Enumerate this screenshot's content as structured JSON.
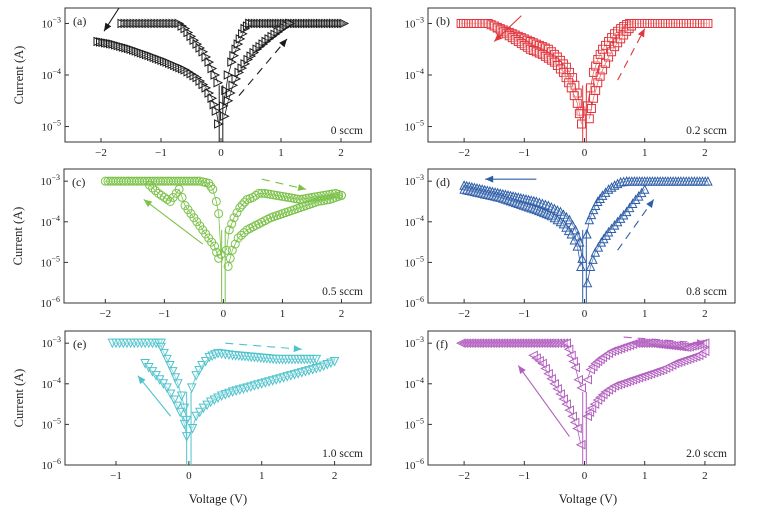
{
  "figure": {
    "ylabel": "Current (A)",
    "xlabel": "Voltage (V)"
  },
  "chart_data": [
    {
      "type": "scatter",
      "panel": "(a)",
      "annotation": "0 sccm",
      "color": "#1a1a1a",
      "marker": "triangle-right",
      "xlabel": "",
      "ylabel": "Current (A)",
      "yscale": "log",
      "xlim": [
        -2.6,
        2.5
      ],
      "ylim_exp": [
        -5.3,
        -2.7
      ],
      "xticks": [
        "-2",
        "-1",
        "0",
        "1",
        "2"
      ],
      "xtick_values": [
        -2,
        -1,
        0,
        1,
        2
      ],
      "yticks": [
        "10^-3",
        "10^-4",
        "10^-5"
      ],
      "ytick_exps": [
        -3,
        -4,
        -5
      ],
      "series": [
        {
          "name": "negative-set-compliance",
          "x": [
            -1.65,
            -1.5,
            -1.3,
            -1.1,
            -0.9,
            -0.7,
            -0.6,
            -0.5,
            -0.4,
            -0.3,
            -0.2,
            -0.1,
            -0.05
          ],
          "log10_y": [
            -3,
            -3,
            -3,
            -3,
            -3,
            -3,
            -3.1,
            -3.25,
            -3.4,
            -3.55,
            -3.75,
            -4.0,
            -4.15
          ]
        },
        {
          "name": "negative-return",
          "x": [
            -2.05,
            -1.8,
            -1.5,
            -1.2,
            -0.9,
            -0.6,
            -0.4,
            -0.25,
            -0.15,
            -0.08,
            -0.04
          ],
          "log10_y": [
            -3.35,
            -3.4,
            -3.5,
            -3.62,
            -3.75,
            -3.9,
            -4.05,
            -4.25,
            -4.45,
            -4.7,
            -4.95
          ]
        },
        {
          "name": "positive-sweep-1",
          "x": [
            0.04,
            0.08,
            0.12,
            0.18,
            0.25,
            0.32,
            0.4,
            0.48
          ],
          "log10_y": [
            -4.6,
            -4.3,
            -4.0,
            -3.75,
            -3.5,
            -3.3,
            -3.1,
            -3.0
          ]
        },
        {
          "name": "positive-compliance",
          "x": [
            0.48,
            0.8,
            1.1,
            1.4,
            1.7,
            2.05
          ],
          "log10_y": [
            -3,
            -3,
            -3,
            -3,
            -3,
            -3
          ]
        },
        {
          "name": "positive-sweep-2",
          "x": [
            0.06,
            0.12,
            0.2,
            0.3,
            0.45,
            0.6,
            0.8,
            1.0,
            1.15
          ],
          "log10_y": [
            -4.8,
            -4.5,
            -4.2,
            -3.95,
            -3.7,
            -3.5,
            -3.3,
            -3.12,
            -3.0
          ]
        }
      ],
      "arrows": [
        {
          "from": [
            -1.7,
            -2.7
          ],
          "to": [
            -1.95,
            -3.15
          ],
          "dashed": false
        },
        {
          "from": [
            0.3,
            -4.4
          ],
          "to": [
            1.1,
            -3.3
          ],
          "dashed": true
        }
      ]
    },
    {
      "type": "scatter",
      "panel": "(b)",
      "annotation": "0.2 sccm",
      "color": "#e0363c",
      "marker": "square",
      "xlabel": "",
      "ylabel": "",
      "yscale": "log",
      "xlim": [
        -2.6,
        2.5
      ],
      "ylim_exp": [
        -5.3,
        -2.7
      ],
      "xticks": [
        "-2",
        "-1",
        "0",
        "1",
        "2"
      ],
      "xtick_values": [
        -2,
        -1,
        0,
        1,
        2
      ],
      "yticks": [
        "10^-3",
        "10^-4",
        "10^-5"
      ],
      "ytick_exps": [
        -3,
        -4,
        -5
      ],
      "series": [
        {
          "name": "negative-upper",
          "x": [
            -2.05,
            -1.8,
            -1.6,
            -1.4,
            -1.2,
            -1.0,
            -0.8,
            -0.6,
            -0.45,
            -0.3,
            -0.2,
            -0.12,
            -0.06
          ],
          "log10_y": [
            -3,
            -3,
            -3,
            -3.1,
            -3.2,
            -3.3,
            -3.4,
            -3.5,
            -3.65,
            -3.85,
            -4.05,
            -4.35,
            -4.7
          ]
        },
        {
          "name": "negative-lower",
          "x": [
            -1.5,
            -1.3,
            -1.1,
            -0.9,
            -0.7,
            -0.5,
            -0.35,
            -0.22,
            -0.12,
            -0.05
          ],
          "log10_y": [
            -3.05,
            -3.2,
            -3.35,
            -3.5,
            -3.6,
            -3.75,
            -3.95,
            -4.25,
            -4.55,
            -4.95
          ]
        },
        {
          "name": "positive-upper",
          "x": [
            0.05,
            0.1,
            0.15,
            0.22,
            0.3,
            0.4,
            0.5,
            0.6,
            0.7,
            0.75
          ],
          "log10_y": [
            -4.6,
            -4.25,
            -3.95,
            -3.7,
            -3.5,
            -3.35,
            -3.2,
            -3.1,
            -3.02,
            -3.0
          ]
        },
        {
          "name": "positive-lower",
          "x": [
            0.08,
            0.15,
            0.22,
            0.3,
            0.4,
            0.5,
            0.6,
            0.7,
            0.78
          ],
          "log10_y": [
            -4.85,
            -4.45,
            -4.15,
            -3.9,
            -3.65,
            -3.45,
            -3.3,
            -3.15,
            -3.05
          ]
        },
        {
          "name": "compliance",
          "x": [
            0.78,
            1.0,
            1.3,
            1.6,
            2.05
          ],
          "log10_y": [
            -3,
            -3,
            -3,
            -3,
            -3
          ]
        }
      ],
      "arrows": [
        {
          "from": [
            -1.05,
            -2.85
          ],
          "to": [
            -1.5,
            -3.35
          ],
          "dashed": false
        },
        {
          "from": [
            0.55,
            -4.1
          ],
          "to": [
            1.0,
            -3.1
          ],
          "dashed": true
        }
      ]
    },
    {
      "type": "scatter",
      "panel": "(c)",
      "annotation": "0.5 sccm",
      "color": "#7cc24a",
      "marker": "circle",
      "xlabel": "",
      "ylabel": "Current (A)",
      "yscale": "log",
      "xlim": [
        -2.7,
        2.5
      ],
      "ylim_exp": [
        -6,
        -2.7
      ],
      "xticks": [
        "-2",
        "-1",
        "0",
        "1",
        "2"
      ],
      "xtick_values": [
        -2,
        -1,
        0,
        1,
        2
      ],
      "yticks": [
        "10^-3",
        "10^-4",
        "10^-5",
        "10^-6"
      ],
      "ytick_exps": [
        -3,
        -4,
        -5,
        -6
      ],
      "series": [
        {
          "name": "negative-compliance",
          "x": [
            -2.0,
            -1.6,
            -1.2,
            -0.8,
            -0.4,
            -0.25,
            -0.18,
            -0.12,
            -0.08,
            -0.04
          ],
          "log10_y": [
            -3,
            -3,
            -3,
            -3,
            -3,
            -3.05,
            -3.2,
            -3.5,
            -3.8,
            -4.8
          ]
        },
        {
          "name": "negative-return",
          "x": [
            -1.25,
            -1.1,
            -1.0,
            -0.9,
            -0.75,
            -0.65,
            -0.55,
            -0.45,
            -0.35,
            -0.25,
            -0.15,
            -0.08
          ],
          "log10_y": [
            -3.1,
            -3.3,
            -3.4,
            -3.5,
            -3.2,
            -3.6,
            -3.8,
            -4.0,
            -4.2,
            -4.4,
            -4.6,
            -4.9
          ]
        },
        {
          "name": "positive-upper",
          "x": [
            0.05,
            0.1,
            0.18,
            0.28,
            0.4,
            0.5,
            0.6,
            0.7,
            0.9,
            1.1,
            1.3,
            1.5,
            1.7,
            1.9,
            2.0
          ],
          "log10_y": [
            -4.7,
            -4.2,
            -3.9,
            -3.65,
            -3.45,
            -3.4,
            -3.3,
            -3.3,
            -3.35,
            -3.4,
            -3.45,
            -3.4,
            -3.35,
            -3.3,
            -3.35
          ]
        },
        {
          "name": "positive-lower",
          "x": [
            0.08,
            0.15,
            0.25,
            0.4,
            0.6,
            0.8,
            1.0,
            1.2,
            1.4,
            1.6,
            1.8,
            2.0
          ],
          "log10_y": [
            -5.1,
            -4.7,
            -4.4,
            -4.2,
            -4.05,
            -3.9,
            -3.8,
            -3.7,
            -3.6,
            -3.5,
            -3.45,
            -3.35
          ]
        }
      ],
      "arrows": [
        {
          "from": [
            -0.35,
            -4.55
          ],
          "to": [
            -1.35,
            -3.45
          ],
          "dashed": false
        },
        {
          "from": [
            0.65,
            -2.95
          ],
          "to": [
            1.4,
            -3.2
          ],
          "dashed": true
        }
      ]
    },
    {
      "type": "scatter",
      "panel": "(d)",
      "annotation": "0.8 sccm",
      "color": "#2e5ea8",
      "marker": "triangle-up",
      "xlabel": "",
      "ylabel": "",
      "yscale": "log",
      "xlim": [
        -2.6,
        2.5
      ],
      "ylim_exp": [
        -6,
        -2.7
      ],
      "xticks": [
        "-2",
        "-1",
        "0",
        "1",
        "2"
      ],
      "xtick_values": [
        -2,
        -1,
        0,
        1,
        2
      ],
      "yticks": [
        "10^-3",
        "10^-4",
        "10^-5",
        "10^-6"
      ],
      "ytick_exps": [
        -3,
        -4,
        -5,
        -6
      ],
      "series": [
        {
          "name": "negative-upper",
          "x": [
            -2.0,
            -1.7,
            -1.4,
            -1.1,
            -0.8,
            -0.6,
            -0.4,
            -0.25,
            -0.15,
            -0.08,
            -0.04
          ],
          "log10_y": [
            -3.1,
            -3.2,
            -3.3,
            -3.4,
            -3.5,
            -3.6,
            -3.75,
            -3.95,
            -4.2,
            -4.5,
            -4.9
          ]
        },
        {
          "name": "negative-lower",
          "x": [
            -2.0,
            -1.7,
            -1.4,
            -1.1,
            -0.8,
            -0.55,
            -0.35,
            -0.22,
            -0.12,
            -0.06
          ],
          "log10_y": [
            -3.2,
            -3.3,
            -3.4,
            -3.55,
            -3.7,
            -3.85,
            -4.05,
            -4.3,
            -4.6,
            -5.1
          ]
        },
        {
          "name": "positive-upper",
          "x": [
            0.04,
            0.08,
            0.15,
            0.22,
            0.3,
            0.4,
            0.5,
            0.6,
            0.7
          ],
          "log10_y": [
            -4.3,
            -3.95,
            -3.7,
            -3.5,
            -3.35,
            -3.2,
            -3.1,
            -3.02,
            -3.0
          ]
        },
        {
          "name": "positive-compliance",
          "x": [
            0.7,
            1.0,
            1.3,
            1.6,
            2.05
          ],
          "log10_y": [
            -3,
            -3,
            -3,
            -3,
            -3
          ]
        },
        {
          "name": "positive-lower",
          "x": [
            0.05,
            0.1,
            0.18,
            0.28,
            0.4,
            0.55,
            0.7,
            0.85,
            1.0
          ],
          "log10_y": [
            -5.5,
            -5.1,
            -4.75,
            -4.5,
            -4.25,
            -4.0,
            -3.75,
            -3.45,
            -3.2
          ]
        }
      ],
      "arrows": [
        {
          "from": [
            -0.8,
            -2.95
          ],
          "to": [
            -1.65,
            -2.95
          ],
          "dashed": false
        },
        {
          "from": [
            0.55,
            -4.7
          ],
          "to": [
            1.15,
            -3.45
          ],
          "dashed": true
        }
      ]
    },
    {
      "type": "scatter",
      "panel": "(e)",
      "annotation": "1.0 sccm",
      "color": "#4fc3cc",
      "marker": "triangle-down",
      "xlabel": "Voltage (V)",
      "ylabel": "Current (A)",
      "yscale": "log",
      "xlim": [
        -1.7,
        2.5
      ],
      "ylim_exp": [
        -6,
        -2.7
      ],
      "xticks": [
        "-1",
        "0",
        "1",
        "2"
      ],
      "xtick_values": [
        -1,
        0,
        1,
        2
      ],
      "yticks": [
        "10^-3",
        "10^-4",
        "10^-5",
        "10^-6"
      ],
      "ytick_exps": [
        -3,
        -4,
        -5,
        -6
      ],
      "series": [
        {
          "name": "negative-compliance",
          "x": [
            -1.05,
            -0.9,
            -0.75,
            -0.6,
            -0.45,
            -0.38
          ],
          "log10_y": [
            -3,
            -3,
            -3,
            -3,
            -3,
            -3
          ]
        },
        {
          "name": "negative-upper",
          "x": [
            -0.38,
            -0.3,
            -0.22,
            -0.15,
            -0.1,
            -0.06,
            -0.03
          ],
          "log10_y": [
            -3.1,
            -3.4,
            -3.7,
            -4.0,
            -4.3,
            -4.6,
            -4.9
          ]
        },
        {
          "name": "negative-lower",
          "x": [
            -0.6,
            -0.5,
            -0.4,
            -0.3,
            -0.2,
            -0.12,
            -0.06,
            -0.03
          ],
          "log10_y": [
            -3.5,
            -3.7,
            -3.9,
            -4.1,
            -4.4,
            -4.7,
            -5.0,
            -5.3
          ]
        },
        {
          "name": "positive-upper",
          "x": [
            0.04,
            0.1,
            0.18,
            0.28,
            0.4,
            0.6,
            0.9,
            1.2,
            1.5,
            1.75
          ],
          "log10_y": [
            -4.1,
            -3.8,
            -3.55,
            -3.35,
            -3.25,
            -3.3,
            -3.35,
            -3.4,
            -3.4,
            -3.4
          ]
        },
        {
          "name": "positive-lower",
          "x": [
            0.05,
            0.1,
            0.2,
            0.3,
            0.45,
            0.6,
            0.8,
            1.0,
            1.2,
            1.4,
            1.6,
            1.8,
            2.0
          ],
          "log10_y": [
            -5.1,
            -4.8,
            -4.6,
            -4.45,
            -4.3,
            -4.2,
            -4.1,
            -4.0,
            -3.9,
            -3.8,
            -3.7,
            -3.6,
            -3.45
          ]
        }
      ],
      "arrows": [
        {
          "from": [
            -0.25,
            -4.8
          ],
          "to": [
            -0.7,
            -3.8
          ],
          "dashed": false
        },
        {
          "from": [
            0.5,
            -3.0
          ],
          "to": [
            1.55,
            -3.15
          ],
          "dashed": true
        }
      ]
    },
    {
      "type": "scatter",
      "panel": "(f)",
      "annotation": "2.0 sccm",
      "color": "#b25fbf",
      "marker": "triangle-left",
      "xlabel": "Voltage (V)",
      "ylabel": "",
      "yscale": "log",
      "xlim": [
        -2.6,
        2.5
      ],
      "ylim_exp": [
        -6,
        -2.7
      ],
      "xticks": [
        "-2",
        "-1",
        "0",
        "1",
        "2"
      ],
      "xtick_values": [
        -2,
        -1,
        0,
        1,
        2
      ],
      "yticks": [
        "10^-3",
        "10^-4",
        "10^-5",
        "10^-6"
      ],
      "ytick_exps": [
        -3,
        -4,
        -5,
        -6
      ],
      "series": [
        {
          "name": "negative-compliance",
          "x": [
            -2.05,
            -1.7,
            -1.3,
            -0.9,
            -0.5,
            -0.3
          ],
          "log10_y": [
            -3,
            -3,
            -3,
            -3,
            -3,
            -3
          ]
        },
        {
          "name": "negative-upper",
          "x": [
            -0.3,
            -0.22,
            -0.15,
            -0.1,
            -0.05
          ],
          "log10_y": [
            -3.0,
            -3.3,
            -3.6,
            -3.9,
            -4.1
          ]
        },
        {
          "name": "negative-lower",
          "x": [
            -0.85,
            -0.7,
            -0.6,
            -0.5,
            -0.4,
            -0.3,
            -0.2,
            -0.12,
            -0.06
          ],
          "log10_y": [
            -3.3,
            -3.5,
            -3.75,
            -4.0,
            -4.25,
            -4.5,
            -4.8,
            -5.1,
            -5.5
          ]
        },
        {
          "name": "positive-upper",
          "x": [
            0.05,
            0.1,
            0.18,
            0.3,
            0.45,
            0.65,
            0.85,
            1.1,
            1.4,
            1.7,
            2.0
          ],
          "log10_y": [
            -3.9,
            -3.65,
            -3.5,
            -3.35,
            -3.2,
            -3.1,
            -3.0,
            -3.0,
            -3.05,
            -3.1,
            -3.0
          ]
        },
        {
          "name": "positive-lower",
          "x": [
            0.05,
            0.12,
            0.22,
            0.35,
            0.5,
            0.7,
            0.9,
            1.1,
            1.3,
            1.5,
            1.7,
            1.9,
            2.0
          ],
          "log10_y": [
            -4.8,
            -4.6,
            -4.4,
            -4.2,
            -4.05,
            -3.95,
            -3.85,
            -3.75,
            -3.65,
            -3.5,
            -3.4,
            -3.3,
            -3.2
          ]
        }
      ],
      "arrows": [
        {
          "from": [
            -0.25,
            -5.3
          ],
          "to": [
            -1.1,
            -3.55
          ],
          "dashed": false
        },
        {
          "from": [
            0.65,
            -2.85
          ],
          "to": [
            2.0,
            -3.0
          ],
          "dashed": true
        }
      ]
    }
  ]
}
